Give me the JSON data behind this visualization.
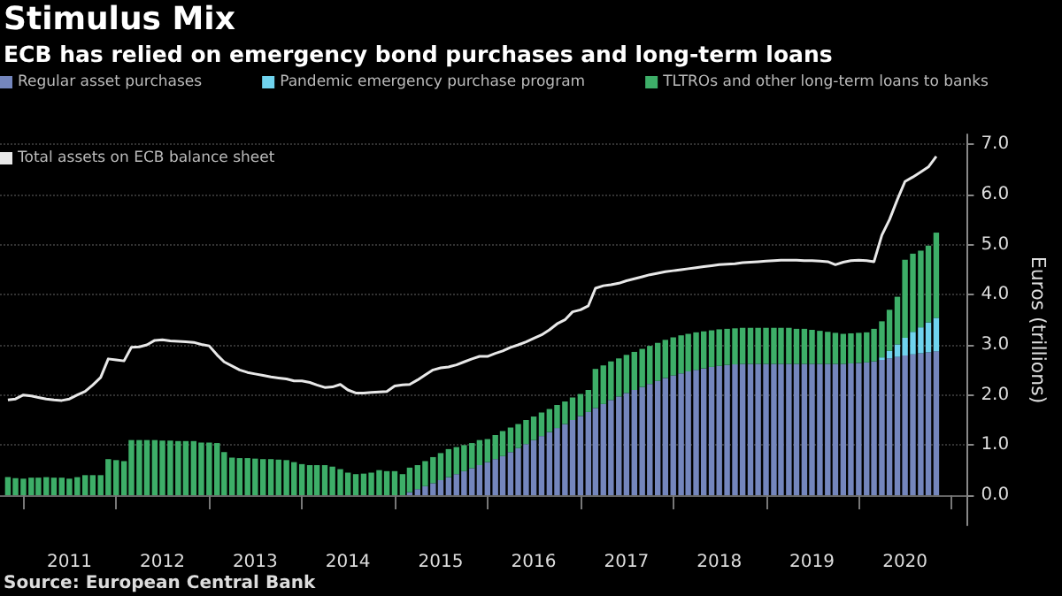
{
  "chart_data": {
    "type": "bar",
    "stacked": true,
    "title": "Stimulus Mix",
    "subtitle": "ECB has relied on emergency bond purchases and long-term loans",
    "ylabel": "Euros (trillions)",
    "annotations": [
      "Source: European Central Bank"
    ],
    "legend": "top left",
    "grid": "y",
    "x": [
      "2010-11",
      "2010-12",
      "2011-01",
      "2011-02",
      "2011-03",
      "2011-04",
      "2011-05",
      "2011-06",
      "2011-07",
      "2011-08",
      "2011-09",
      "2011-10",
      "2011-11",
      "2011-12",
      "2012-01",
      "2012-02",
      "2012-03",
      "2012-04",
      "2012-05",
      "2012-06",
      "2012-07",
      "2012-08",
      "2012-09",
      "2012-10",
      "2012-11",
      "2012-12",
      "2013-01",
      "2013-02",
      "2013-03",
      "2013-04",
      "2013-05",
      "2013-06",
      "2013-07",
      "2013-08",
      "2013-09",
      "2013-10",
      "2013-11",
      "2013-12",
      "2014-01",
      "2014-02",
      "2014-03",
      "2014-04",
      "2014-05",
      "2014-06",
      "2014-07",
      "2014-08",
      "2014-09",
      "2014-10",
      "2014-11",
      "2014-12",
      "2015-01",
      "2015-02",
      "2015-03",
      "2015-04",
      "2015-05",
      "2015-06",
      "2015-07",
      "2015-08",
      "2015-09",
      "2015-10",
      "2015-11",
      "2015-12",
      "2016-01",
      "2016-02",
      "2016-03",
      "2016-04",
      "2016-05",
      "2016-06",
      "2016-07",
      "2016-08",
      "2016-09",
      "2016-10",
      "2016-11",
      "2016-12",
      "2017-01",
      "2017-02",
      "2017-03",
      "2017-04",
      "2017-05",
      "2017-06",
      "2017-07",
      "2017-08",
      "2017-09",
      "2017-10",
      "2017-11",
      "2017-12",
      "2018-01",
      "2018-02",
      "2018-03",
      "2018-04",
      "2018-05",
      "2018-06",
      "2018-07",
      "2018-08",
      "2018-09",
      "2018-10",
      "2018-11",
      "2018-12",
      "2019-01",
      "2019-02",
      "2019-03",
      "2019-04",
      "2019-05",
      "2019-06",
      "2019-07",
      "2019-08",
      "2019-09",
      "2019-10",
      "2019-11",
      "2019-12",
      "2020-01",
      "2020-02",
      "2020-03",
      "2020-04",
      "2020-05",
      "2020-06",
      "2020-07",
      "2020-08",
      "2020-09",
      "2020-10",
      "2020-11"
    ],
    "xlim": [
      "2010-10",
      "2021-03"
    ],
    "xticks": [
      {
        "value": "2011-01",
        "label": null
      },
      {
        "value": "2011-07",
        "label": "2011"
      },
      {
        "value": "2012-01",
        "label": null
      },
      {
        "value": "2012-07",
        "label": "2012"
      },
      {
        "value": "2013-01",
        "label": null
      },
      {
        "value": "2013-07",
        "label": "2013"
      },
      {
        "value": "2014-01",
        "label": null
      },
      {
        "value": "2014-07",
        "label": "2014"
      },
      {
        "value": "2015-01",
        "label": null
      },
      {
        "value": "2015-07",
        "label": "2015"
      },
      {
        "value": "2016-01",
        "label": null
      },
      {
        "value": "2016-07",
        "label": "2016"
      },
      {
        "value": "2017-01",
        "label": null
      },
      {
        "value": "2017-07",
        "label": "2017"
      },
      {
        "value": "2018-01",
        "label": null
      },
      {
        "value": "2018-07",
        "label": "2018"
      },
      {
        "value": "2019-01",
        "label": null
      },
      {
        "value": "2019-07",
        "label": "2019"
      },
      {
        "value": "2020-01",
        "label": null
      },
      {
        "value": "2020-07",
        "label": "2020"
      },
      {
        "value": "2021-01",
        "label": null
      }
    ],
    "ylim": [
      -0.6,
      7.2
    ],
    "yticks": [
      {
        "value": 0,
        "label": "0.0"
      },
      {
        "value": 1,
        "label": "1.0"
      },
      {
        "value": 2,
        "label": "2.0"
      },
      {
        "value": 3,
        "label": "3.0"
      },
      {
        "value": 4,
        "label": "4.0"
      },
      {
        "value": 5,
        "label": "5.0"
      },
      {
        "value": 6,
        "label": "6.0"
      },
      {
        "value": 7,
        "label": "7.0"
      }
    ],
    "series": [
      {
        "name": "Regular asset purchases",
        "color": "#7486bd",
        "values": [
          null,
          null,
          null,
          null,
          null,
          null,
          null,
          null,
          null,
          null,
          null,
          null,
          null,
          null,
          null,
          null,
          null,
          null,
          null,
          null,
          null,
          null,
          null,
          null,
          null,
          null,
          null,
          null,
          null,
          null,
          null,
          null,
          null,
          null,
          null,
          null,
          null,
          null,
          null,
          null,
          null,
          null,
          null,
          null,
          null,
          null,
          null,
          null,
          null,
          null,
          null,
          null,
          0.06,
          0.12,
          0.18,
          0.24,
          0.3,
          0.36,
          0.42,
          0.48,
          0.54,
          0.6,
          0.66,
          0.72,
          0.78,
          0.86,
          0.94,
          1.02,
          1.1,
          1.18,
          1.26,
          1.34,
          1.42,
          1.5,
          1.58,
          1.66,
          1.74,
          1.82,
          1.9,
          1.97,
          2.04,
          2.1,
          2.16,
          2.22,
          2.28,
          2.34,
          2.39,
          2.43,
          2.47,
          2.5,
          2.53,
          2.56,
          2.58,
          2.6,
          2.61,
          2.62,
          2.62,
          2.62,
          2.62,
          2.62,
          2.62,
          2.62,
          2.62,
          2.62,
          2.62,
          2.62,
          2.62,
          2.62,
          2.62,
          2.63,
          2.64,
          2.65,
          2.67,
          2.7,
          2.73,
          2.76,
          2.79,
          2.81,
          2.83,
          2.85,
          2.87
        ]
      },
      {
        "name": "Pandemic emergency purchase program",
        "color": "#6fd3ee",
        "values": [
          null,
          null,
          null,
          null,
          null,
          null,
          null,
          null,
          null,
          null,
          null,
          null,
          null,
          null,
          null,
          null,
          null,
          null,
          null,
          null,
          null,
          null,
          null,
          null,
          null,
          null,
          null,
          null,
          null,
          null,
          null,
          null,
          null,
          null,
          null,
          null,
          null,
          null,
          null,
          null,
          null,
          null,
          null,
          null,
          null,
          null,
          null,
          null,
          null,
          null,
          null,
          null,
          null,
          null,
          null,
          null,
          null,
          null,
          null,
          null,
          null,
          null,
          null,
          null,
          null,
          null,
          null,
          null,
          null,
          null,
          null,
          null,
          null,
          null,
          null,
          null,
          null,
          null,
          null,
          null,
          null,
          null,
          null,
          null,
          null,
          null,
          null,
          null,
          null,
          null,
          null,
          null,
          null,
          null,
          null,
          null,
          null,
          null,
          null,
          null,
          null,
          null,
          null,
          null,
          null,
          null,
          null,
          null,
          null,
          null,
          null,
          null,
          null,
          0.05,
          0.15,
          0.25,
          0.35,
          0.45,
          0.52,
          0.6,
          0.67
        ]
      },
      {
        "name": "TLTROs and other long-term loans to banks",
        "color": "#3dae68",
        "values": [
          0.36,
          0.34,
          0.33,
          0.35,
          0.35,
          0.36,
          0.35,
          0.35,
          0.33,
          0.36,
          0.4,
          0.4,
          0.4,
          0.72,
          0.7,
          0.68,
          1.1,
          1.1,
          1.1,
          1.1,
          1.09,
          1.09,
          1.08,
          1.08,
          1.08,
          1.05,
          1.05,
          1.04,
          0.86,
          0.75,
          0.74,
          0.74,
          0.73,
          0.72,
          0.72,
          0.71,
          0.7,
          0.66,
          0.62,
          0.6,
          0.6,
          0.6,
          0.57,
          0.52,
          0.45,
          0.42,
          0.43,
          0.45,
          0.5,
          0.48,
          0.48,
          0.42,
          0.49,
          0.48,
          0.5,
          0.52,
          0.54,
          0.56,
          0.54,
          0.52,
          0.5,
          0.5,
          0.46,
          0.48,
          0.5,
          0.49,
          0.48,
          0.48,
          0.47,
          0.47,
          0.46,
          0.46,
          0.45,
          0.45,
          0.44,
          0.44,
          0.78,
          0.77,
          0.77,
          0.76,
          0.76,
          0.76,
          0.76,
          0.76,
          0.76,
          0.76,
          0.76,
          0.76,
          0.75,
          0.75,
          0.74,
          0.73,
          0.73,
          0.72,
          0.72,
          0.72,
          0.72,
          0.72,
          0.72,
          0.72,
          0.72,
          0.72,
          0.7,
          0.7,
          0.68,
          0.66,
          0.64,
          0.62,
          0.6,
          0.6,
          0.6,
          0.6,
          0.65,
          0.72,
          0.82,
          0.95,
          1.56,
          1.56,
          1.53,
          1.53,
          1.7
        ]
      },
      {
        "name": "Total assets on ECB balance sheet",
        "type": "line",
        "color": "#e8e8e8",
        "values": [
          1.9,
          1.92,
          2.0,
          1.98,
          1.95,
          1.92,
          1.9,
          1.89,
          1.92,
          2.0,
          2.07,
          2.2,
          2.35,
          2.72,
          2.7,
          2.68,
          2.95,
          2.96,
          3.0,
          3.09,
          3.1,
          3.08,
          3.07,
          3.06,
          3.05,
          3.01,
          2.98,
          2.8,
          2.66,
          2.58,
          2.5,
          2.45,
          2.42,
          2.39,
          2.36,
          2.34,
          2.32,
          2.28,
          2.28,
          2.25,
          2.2,
          2.15,
          2.16,
          2.21,
          2.1,
          2.04,
          2.04,
          2.05,
          2.06,
          2.07,
          2.18,
          2.2,
          2.21,
          2.3,
          2.4,
          2.5,
          2.54,
          2.56,
          2.6,
          2.66,
          2.72,
          2.77,
          2.77,
          2.83,
          2.88,
          2.95,
          3.0,
          3.06,
          3.13,
          3.2,
          3.3,
          3.42,
          3.5,
          3.66,
          3.7,
          3.78,
          4.13,
          4.18,
          4.2,
          4.23,
          4.28,
          4.32,
          4.36,
          4.4,
          4.43,
          4.46,
          4.48,
          4.5,
          4.52,
          4.54,
          4.56,
          4.58,
          4.6,
          4.61,
          4.62,
          4.64,
          4.65,
          4.66,
          4.67,
          4.68,
          4.69,
          4.69,
          4.69,
          4.68,
          4.68,
          4.67,
          4.66,
          4.6,
          4.65,
          4.68,
          4.69,
          4.68,
          4.66,
          5.19,
          5.5,
          5.9,
          6.26,
          6.35,
          6.45,
          6.55,
          6.76
        ]
      }
    ]
  }
}
